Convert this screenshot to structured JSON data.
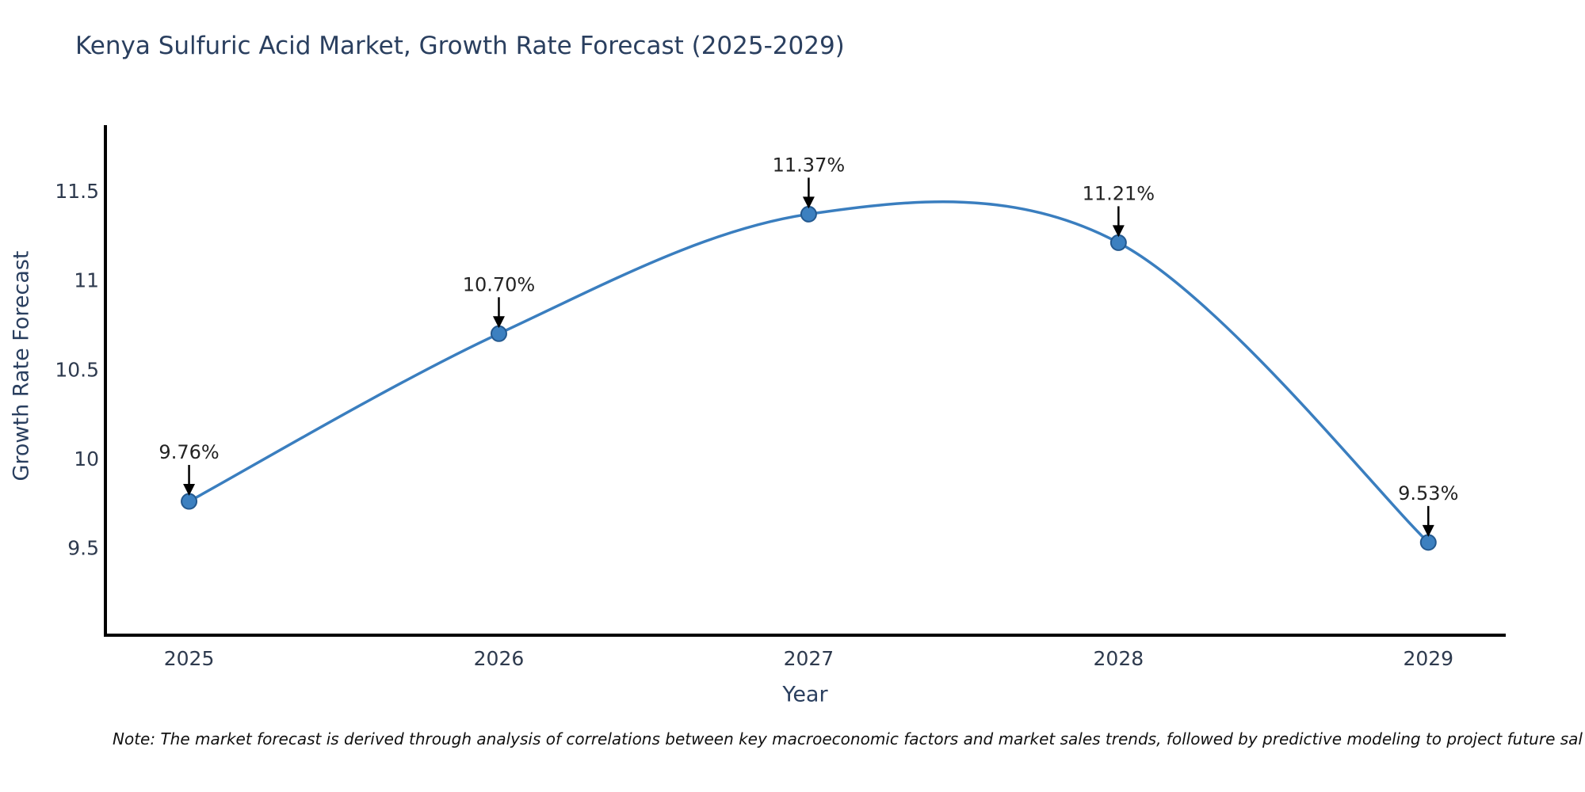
{
  "title": "Kenya Sulfuric Acid Market, Growth Rate Forecast (2025-2029)",
  "note": "Note: The market forecast is derived through analysis of correlations between key macroeconomic factors and market sales trends, followed by predictive modeling to project future sal",
  "colors": {
    "line": "#3a7ebf",
    "marker_fill": "#3c80c0",
    "marker_edge": "#24598f",
    "arrow": "#000000",
    "axis": "#000000",
    "title_text": "#2a3f5f",
    "tick_text": "#2e3a4e",
    "annotation_text": "#222222",
    "background": "#ffffff"
  },
  "chart_data": {
    "type": "line",
    "title": "Kenya Sulfuric Acid Market, Growth Rate Forecast (2025-2029)",
    "xlabel": "Year",
    "ylabel": "Growth Rate Forecast",
    "x": [
      2025,
      2026,
      2027,
      2028,
      2029
    ],
    "series": [
      {
        "name": "Growth Rate Forecast",
        "values": [
          9.76,
          10.7,
          11.37,
          11.21,
          9.53
        ]
      }
    ],
    "point_labels": [
      "9.76%",
      "10.70%",
      "11.37%",
      "11.21%",
      "9.53%"
    ],
    "xtick_labels": [
      "2025",
      "2026",
      "2027",
      "2028",
      "2029"
    ],
    "yticks": [
      9.5,
      10,
      10.5,
      11,
      11.5
    ],
    "ytick_labels": [
      "9.5",
      "10",
      "10.5",
      "11",
      "11.5"
    ],
    "xlim": [
      2024.73,
      2029.25
    ],
    "ylim": [
      9.01,
      11.86
    ],
    "grid": false,
    "legend": "none",
    "line_shape": "spline",
    "marker": "circle"
  }
}
